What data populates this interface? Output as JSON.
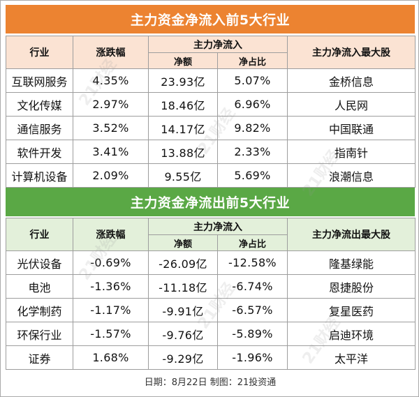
{
  "inflow": {
    "title": "主力资金净流入前5大行业",
    "headers": {
      "industry": "行业",
      "change": "涨跌幅",
      "main_flow": "主力净流入",
      "net_amount": "净额",
      "net_ratio": "净占比",
      "top_stock": "主力净流入最大股"
    },
    "rows": [
      {
        "industry": "互联网服务",
        "change": "4.35%",
        "net_amount": "23.93亿",
        "net_ratio": "5.07%",
        "top_stock": "金桥信息"
      },
      {
        "industry": "文化传媒",
        "change": "2.97%",
        "net_amount": "18.46亿",
        "net_ratio": "6.96%",
        "top_stock": "人民网"
      },
      {
        "industry": "通信服务",
        "change": "3.52%",
        "net_amount": "14.17亿",
        "net_ratio": "9.82%",
        "top_stock": "中国联通"
      },
      {
        "industry": "软件开发",
        "change": "3.41%",
        "net_amount": "13.88亿",
        "net_ratio": "2.33%",
        "top_stock": "指南针"
      },
      {
        "industry": "计算机设备",
        "change": "2.09%",
        "net_amount": "9.55亿",
        "net_ratio": "5.69%",
        "top_stock": "浪潮信息"
      }
    ]
  },
  "outflow": {
    "title": "主力资金净流出前5大行业",
    "headers": {
      "industry": "行业",
      "change": "涨跌幅",
      "main_flow": "主力净流入",
      "net_amount": "净额",
      "net_ratio": "净占比",
      "top_stock": "主力净流出最大股"
    },
    "rows": [
      {
        "industry": "光伏设备",
        "change": "-0.69%",
        "net_amount": "-26.09亿",
        "net_ratio": "-12.58%",
        "top_stock": "隆基绿能"
      },
      {
        "industry": "电池",
        "change": "-1.36%",
        "net_amount": "-11.18亿",
        "net_ratio": "-6.74%",
        "top_stock": "恩捷股份"
      },
      {
        "industry": "化学制药",
        "change": "-1.17%",
        "net_amount": "-9.91亿",
        "net_ratio": "-6.57%",
        "top_stock": "复星医药"
      },
      {
        "industry": "环保行业",
        "change": "-1.57%",
        "net_amount": "-9.76亿",
        "net_ratio": "-5.89%",
        "top_stock": "启迪环境"
      },
      {
        "industry": "证券",
        "change": "1.68%",
        "net_amount": "-9.29亿",
        "net_ratio": "-1.96%",
        "top_stock": "太平洋"
      }
    ]
  },
  "footer": "日期：8月22日 制图：21投资通",
  "watermark": "21财经",
  "colors": {
    "inflow_title": "#ec8331",
    "inflow_header": "#fbe3d3",
    "outflow_title": "#5aa845",
    "outflow_header": "#e3f0da",
    "grid_line": "#9d9d9d"
  }
}
